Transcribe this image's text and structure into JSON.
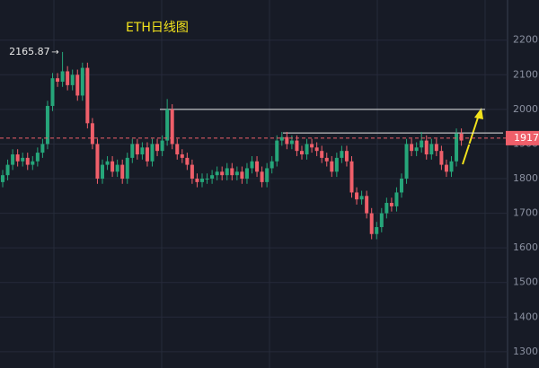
{
  "chart_data": {
    "type": "candlestick",
    "title": "ETH日线图",
    "open": [
      1790,
      1810,
      1840,
      1870,
      1850,
      1860,
      1840,
      1850,
      1875,
      1900,
      2010,
      2090,
      2080,
      2110,
      2070,
      2100,
      2040,
      2120,
      1960,
      1900,
      1800,
      1840,
      1850,
      1820,
      1840,
      1800,
      1860,
      1900,
      1870,
      1890,
      1850,
      1900,
      1880,
      1910,
      2000,
      1900,
      1870,
      1860,
      1840,
      1800,
      1790,
      1800,
      1800,
      1810,
      1820,
      1810,
      1830,
      1810,
      1820,
      1800,
      1830,
      1850,
      1820,
      1790,
      1830,
      1850,
      1910,
      1920,
      1900,
      1910,
      1880,
      1870,
      1900,
      1890,
      1880,
      1860,
      1850,
      1820,
      1860,
      1880,
      1850,
      1760,
      1740,
      1750,
      1700,
      1640,
      1660,
      1700,
      1730,
      1720,
      1760,
      1800,
      1900,
      1880,
      1890,
      1910,
      1870,
      1900,
      1880,
      1840,
      1820,
      1850,
      1930
    ],
    "high": [
      1825,
      1855,
      1885,
      1885,
      1875,
      1875,
      1865,
      1890,
      1915,
      2025,
      2105,
      2105,
      2165.87,
      2125,
      2115,
      2115,
      2135,
      2135,
      1975,
      1915,
      1855,
      1865,
      1865,
      1855,
      1855,
      1875,
      1915,
      1915,
      1905,
      1905,
      1915,
      1915,
      1925,
      2030,
      2015,
      1915,
      1885,
      1875,
      1855,
      1815,
      1815,
      1815,
      1825,
      1835,
      1835,
      1845,
      1845,
      1835,
      1835,
      1845,
      1865,
      1865,
      1835,
      1845,
      1865,
      1925,
      1935,
      1935,
      1925,
      1925,
      1895,
      1915,
      1915,
      1905,
      1895,
      1875,
      1865,
      1875,
      1895,
      1895,
      1865,
      1775,
      1765,
      1765,
      1715,
      1675,
      1715,
      1745,
      1745,
      1775,
      1815,
      1915,
      1915,
      1905,
      1935,
      1925,
      1915,
      1915,
      1895,
      1855,
      1865,
      1945,
      1945
    ],
    "low": [
      1775,
      1795,
      1825,
      1835,
      1835,
      1825,
      1825,
      1835,
      1860,
      1885,
      1995,
      2065,
      2065,
      2055,
      2055,
      2025,
      2025,
      1945,
      1885,
      1785,
      1785,
      1825,
      1805,
      1805,
      1785,
      1785,
      1845,
      1855,
      1855,
      1835,
      1835,
      1865,
      1865,
      1895,
      1885,
      1855,
      1845,
      1825,
      1785,
      1775,
      1775,
      1785,
      1785,
      1795,
      1795,
      1795,
      1795,
      1795,
      1785,
      1785,
      1815,
      1805,
      1775,
      1775,
      1815,
      1835,
      1895,
      1885,
      1885,
      1865,
      1855,
      1855,
      1875,
      1865,
      1845,
      1835,
      1805,
      1805,
      1845,
      1835,
      1745,
      1725,
      1725,
      1685,
      1625,
      1625,
      1645,
      1685,
      1705,
      1705,
      1745,
      1785,
      1865,
      1865,
      1875,
      1855,
      1855,
      1865,
      1825,
      1805,
      1805,
      1835,
      1895
    ],
    "close": [
      1810,
      1840,
      1870,
      1850,
      1860,
      1840,
      1850,
      1875,
      1900,
      2010,
      2090,
      2080,
      2110,
      2070,
      2100,
      2040,
      2120,
      1960,
      1900,
      1800,
      1840,
      1850,
      1820,
      1840,
      1800,
      1860,
      1900,
      1870,
      1890,
      1850,
      1900,
      1880,
      1910,
      2000,
      1900,
      1870,
      1860,
      1840,
      1800,
      1790,
      1800,
      1800,
      1810,
      1820,
      1810,
      1830,
      1810,
      1820,
      1800,
      1830,
      1850,
      1820,
      1790,
      1830,
      1850,
      1910,
      1920,
      1900,
      1910,
      1880,
      1870,
      1900,
      1890,
      1880,
      1860,
      1850,
      1820,
      1860,
      1880,
      1850,
      1760,
      1740,
      1750,
      1700,
      1640,
      1660,
      1700,
      1730,
      1720,
      1760,
      1800,
      1900,
      1880,
      1890,
      1910,
      1870,
      1900,
      1880,
      1840,
      1820,
      1850,
      1930,
      1910
    ],
    "up_color": "#26a67a",
    "down_color": "#ef5f6a",
    "ylim": [
      1253,
      2316
    ],
    "yticks": [
      1300,
      1400,
      1500,
      1600,
      1700,
      1800,
      1900,
      2000,
      2100,
      2200
    ],
    "levels": [
      2000,
      1932
    ],
    "price_line": {
      "value": 1917,
      "label": "1917."
    },
    "grid": true
  }
}
